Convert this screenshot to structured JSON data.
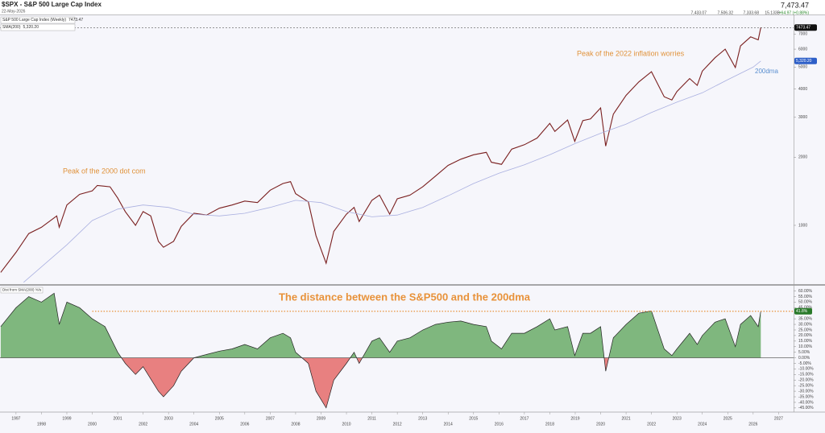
{
  "header": {
    "title": "$SPX - S&P 500 Large Cap Index",
    "date": "22-May-2026",
    "last": "7,473.47",
    "open": "7,433.07",
    "high": "7,506.32",
    "low": "7,333.68",
    "volume": "15.133B",
    "change": "+64.97 (+0.88%)"
  },
  "annotations": [
    "Peak of the 2000 dot com",
    "Peak of the 2022 inflation worries",
    "200dma",
    "The distance between the S&P500 and the 200dma"
  ],
  "chart_data": [
    {
      "type": "line",
      "yscale": "log",
      "xlim": [
        1996.37,
        2027.59
      ],
      "ylim": [
        550,
        8400
      ],
      "yticks": [
        1000,
        2000,
        3000,
        4000,
        5000,
        6000,
        7000
      ],
      "series": [
        {
          "name": "S&P 500 Large Cap Index (Weekly)",
          "last_label": "7473.47",
          "color": "#7a1f1f",
          "x": [
            1996.4,
            1997,
            1997.5,
            1998,
            1998.6,
            1998.7,
            1999,
            1999.5,
            2000,
            2000.2,
            2000.7,
            2001,
            2001.3,
            2001.7,
            2002,
            2002.3,
            2002.6,
            2002.8,
            2003.2,
            2003.5,
            2004,
            2004.5,
            2005,
            2005.5,
            2006,
            2006.5,
            2007,
            2007.5,
            2007.8,
            2008,
            2008.5,
            2008.8,
            2009.2,
            2009.5,
            2010,
            2010.3,
            2010.5,
            2011,
            2011.3,
            2011.7,
            2012,
            2012.5,
            2013,
            2013.5,
            2014,
            2014.5,
            2015,
            2015.5,
            2015.7,
            2016.1,
            2016.5,
            2017,
            2017.5,
            2018,
            2018.2,
            2018.7,
            2018.98,
            2019.3,
            2019.6,
            2020,
            2020.2,
            2020.5,
            2021,
            2021.5,
            2022,
            2022.5,
            2022.8,
            2023,
            2023.5,
            2023.8,
            2024,
            2024.5,
            2024.9,
            2025.3,
            2025.5,
            2025.9,
            2026.2,
            2026.3
          ],
          "values": [
            620,
            760,
            920,
            980,
            1100,
            980,
            1230,
            1370,
            1420,
            1500,
            1480,
            1320,
            1150,
            1000,
            1150,
            1100,
            850,
            800,
            850,
            990,
            1130,
            1110,
            1190,
            1230,
            1280,
            1260,
            1430,
            1530,
            1560,
            1380,
            1270,
            900,
            680,
            940,
            1120,
            1200,
            1040,
            1290,
            1360,
            1120,
            1310,
            1360,
            1480,
            1650,
            1840,
            1960,
            2050,
            2100,
            1900,
            1860,
            2170,
            2270,
            2430,
            2820,
            2600,
            2920,
            2350,
            2900,
            2950,
            3300,
            2240,
            3100,
            3750,
            4300,
            4770,
            3700,
            3580,
            3900,
            4450,
            4150,
            4800,
            5500,
            6000,
            4980,
            6200,
            6800,
            6600,
            7473.47
          ]
        },
        {
          "name": "SMA(200)",
          "last_label": "5,320.20",
          "color": "#aab0e0",
          "x": [
            1997.3,
            1999,
            2000,
            2001,
            2002,
            2003,
            2004,
            2005,
            2006,
            2007,
            2008,
            2009,
            2010,
            2011,
            2012,
            2013,
            2014,
            2015,
            2016,
            2017,
            2018,
            2019,
            2020,
            2021,
            2022,
            2023,
            2024,
            2025,
            2026,
            2026.3
          ],
          "values": [
            560,
            820,
            1050,
            1180,
            1230,
            1200,
            1120,
            1100,
            1130,
            1200,
            1290,
            1260,
            1150,
            1090,
            1110,
            1200,
            1350,
            1530,
            1700,
            1850,
            2050,
            2300,
            2550,
            2800,
            3150,
            3500,
            3850,
            4400,
            5000,
            5320.2
          ]
        }
      ]
    },
    {
      "type": "area",
      "xlim": [
        1996.37,
        2027.59
      ],
      "ylim": [
        -48,
        64
      ],
      "yticks": [
        {
          "value": 60,
          "label": "60.00%"
        },
        {
          "value": 55,
          "label": "55.00%"
        },
        {
          "value": 50,
          "label": "50.00%"
        },
        {
          "value": 45,
          "label": "45.00%"
        },
        {
          "value": 35,
          "label": "35.00%"
        },
        {
          "value": 30,
          "label": "30.00%"
        },
        {
          "value": 25,
          "label": "25.00%"
        },
        {
          "value": 20,
          "label": "20.00%"
        },
        {
          "value": 15,
          "label": "15.00%"
        },
        {
          "value": 10,
          "label": "10.00%"
        },
        {
          "value": 5,
          "label": "5.00%"
        },
        {
          "value": 0,
          "label": "0.00%"
        },
        {
          "value": -5,
          "label": "-5.00%"
        },
        {
          "value": -10,
          "label": "-10.00%"
        },
        {
          "value": -15,
          "label": "-15.00%"
        },
        {
          "value": -20,
          "label": "-20.00%"
        },
        {
          "value": -25,
          "label": "-25.00%"
        },
        {
          "value": -30,
          "label": "-30.00%"
        },
        {
          "value": -35,
          "label": "-35.00%"
        },
        {
          "value": -40,
          "label": "-40.00%"
        },
        {
          "value": -45,
          "label": "-45.00%"
        }
      ],
      "xticks": [
        1997,
        1998,
        1999,
        2000,
        2001,
        2002,
        2003,
        2004,
        2005,
        2006,
        2007,
        2008,
        2009,
        2010,
        2011,
        2012,
        2013,
        2014,
        2015,
        2016,
        2017,
        2018,
        2019,
        2020,
        2021,
        2022,
        2023,
        2024,
        2025,
        2026,
        2027
      ],
      "reference_line": {
        "value": 41.79,
        "from": 2000
      },
      "series": [
        {
          "name": "Dist from SMA(200) %/s",
          "last_label": "41.8%",
          "positive_color": "#7fb77e",
          "negative_color": "#e88080",
          "x": [
            1996.4,
            1997,
            1997.5,
            1998,
            1998.5,
            1998.7,
            1999,
            1999.5,
            2000,
            2000.5,
            2001,
            2001.3,
            2001.7,
            2002,
            2002.6,
            2002.8,
            2003.2,
            2003.5,
            2004,
            2004.5,
            2005,
            2005.5,
            2006,
            2006.5,
            2007,
            2007.5,
            2007.8,
            2008,
            2008.5,
            2008.8,
            2009.2,
            2009.5,
            2010,
            2010.3,
            2010.5,
            2011,
            2011.3,
            2011.7,
            2012,
            2012.5,
            2013,
            2013.5,
            2014,
            2014.5,
            2015,
            2015.5,
            2015.7,
            2016.1,
            2016.5,
            2017,
            2017.5,
            2018,
            2018.2,
            2018.7,
            2018.98,
            2019.3,
            2019.6,
            2020,
            2020.2,
            2020.5,
            2021,
            2021.5,
            2022,
            2022.5,
            2022.8,
            2023,
            2023.5,
            2023.8,
            2024,
            2024.5,
            2024.9,
            2025.3,
            2025.5,
            2025.9,
            2026.2,
            2026.3
          ],
          "values": [
            28,
            45,
            55,
            50,
            58,
            30,
            50,
            45,
            35,
            28,
            5,
            -5,
            -15,
            -8,
            -30,
            -35,
            -25,
            -12,
            0,
            3,
            6,
            8,
            12,
            8,
            18,
            22,
            18,
            5,
            -5,
            -30,
            -45,
            -20,
            -5,
            5,
            -5,
            15,
            18,
            5,
            15,
            18,
            25,
            30,
            32,
            33,
            30,
            28,
            15,
            8,
            22,
            22,
            28,
            35,
            25,
            28,
            2,
            22,
            22,
            28,
            -12,
            18,
            30,
            40,
            42,
            8,
            2,
            8,
            22,
            12,
            20,
            32,
            35,
            10,
            30,
            38,
            28,
            41.79
          ]
        }
      ]
    }
  ]
}
